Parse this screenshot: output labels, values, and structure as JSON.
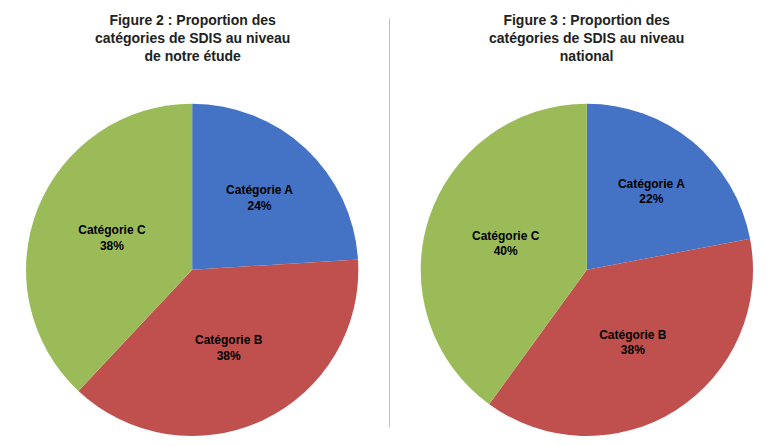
{
  "chart_data": [
    {
      "type": "pie",
      "title": "Figure 2 : Proportion des\ncatégories de SDIS au niveau\nde notre étude",
      "categories": [
        "Catégorie A",
        "Catégorie B",
        "Catégorie C"
      ],
      "values": [
        24,
        38,
        38
      ],
      "value_labels": [
        "24%",
        "38%",
        "38%"
      ],
      "colors": [
        "#4472C4",
        "#C0504D",
        "#9BBB59"
      ],
      "data_labels": true
    },
    {
      "type": "pie",
      "title": "Figure 3 : Proportion des\ncatégories de SDIS au niveau\nnational",
      "categories": [
        "Catégorie A",
        "Catégorie B",
        "Catégorie C"
      ],
      "values": [
        22,
        38,
        40
      ],
      "value_labels": [
        "22%",
        "38%",
        "40%"
      ],
      "colors": [
        "#4472C4",
        "#C0504D",
        "#9BBB59"
      ],
      "data_labels": true
    }
  ]
}
